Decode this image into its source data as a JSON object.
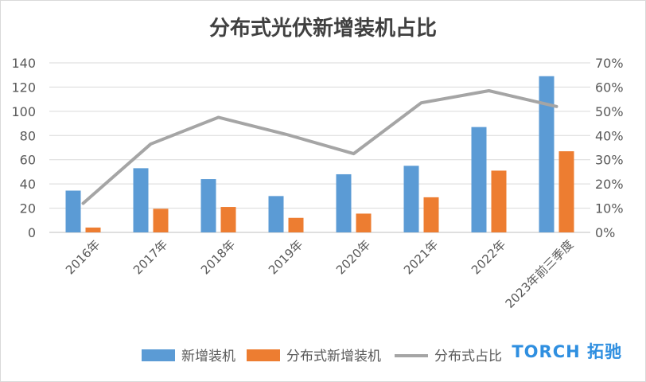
{
  "chart_data": {
    "type": "bar",
    "title": "分布式光伏新增装机占比",
    "categories": [
      "2016年",
      "2017年",
      "2018年",
      "2019年",
      "2020年",
      "2021年",
      "2022年",
      "2023年前三季度"
    ],
    "series": [
      {
        "name": "新增装机",
        "type": "bar",
        "axis": "left",
        "color": "#5b9bd5",
        "values": [
          34.5,
          53,
          44,
          30,
          48,
          55,
          87,
          129
        ]
      },
      {
        "name": "分布式新增装机",
        "type": "bar",
        "axis": "left",
        "color": "#ed7d31",
        "values": [
          4,
          19.5,
          21,
          12,
          15.5,
          29,
          51,
          67
        ]
      },
      {
        "name": "分布式占比",
        "type": "line",
        "axis": "right",
        "color": "#a5a5a5",
        "values": [
          0.12,
          0.365,
          0.475,
          0.405,
          0.325,
          0.535,
          0.585,
          0.52
        ]
      }
    ],
    "y_left": {
      "min": 0,
      "max": 140,
      "ticks": [
        0,
        20,
        40,
        60,
        80,
        100,
        120,
        140
      ]
    },
    "y_right": {
      "min": 0,
      "max": 0.7,
      "ticks": [
        "0%",
        "10%",
        "20%",
        "30%",
        "40%",
        "50%",
        "60%",
        "70%"
      ]
    },
    "grid": true,
    "legend_position": "bottom"
  }
}
